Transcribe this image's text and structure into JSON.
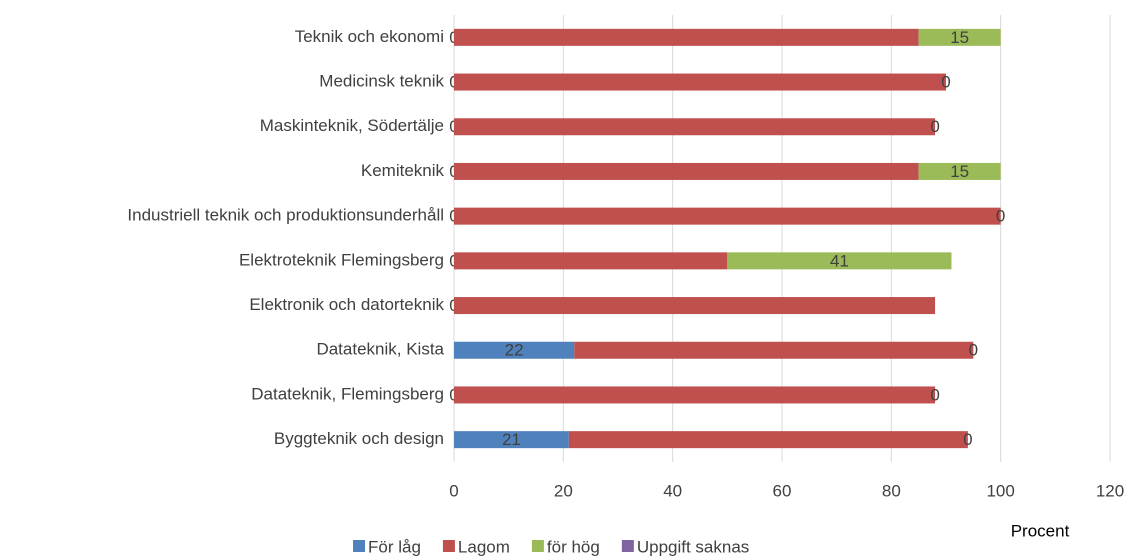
{
  "chart_data": {
    "type": "stacked_barh",
    "categories": [
      "Teknik och ekonomi",
      "Medicinsk teknik",
      "Maskinteknik, Södertälje",
      "Kemiteknik",
      "Industriell teknik och produktionsunderhåll",
      "Elektroteknik Flemingsberg",
      "Elektronik och datorteknik",
      "Datateknik, Kista",
      "Datateknik, Flemingsberg",
      "Byggteknik och design"
    ],
    "series": [
      {
        "name": "För låg",
        "color": "#4f81bd",
        "values": [
          0,
          0,
          0,
          0,
          0,
          0,
          0,
          22,
          0,
          21
        ],
        "labels": true
      },
      {
        "name": "Lagom",
        "color": "#c0504d",
        "values": [
          85,
          90,
          88,
          85,
          100,
          50,
          88,
          73,
          88,
          73
        ],
        "labels": false
      },
      {
        "name": "för hög",
        "color": "#9bbb59",
        "values": [
          15,
          0,
          0,
          15,
          0,
          41,
          null,
          0,
          0,
          0
        ],
        "labels": true
      },
      {
        "name": "Uppgift saknas",
        "color": "#8064a2",
        "values": [
          0,
          0,
          0,
          0,
          0,
          0,
          0,
          0,
          0,
          0
        ],
        "labels": false
      }
    ],
    "xlim": [
      0,
      120
    ],
    "xticks": [
      0,
      20,
      40,
      60,
      80,
      100,
      120
    ],
    "xlabel": "Procent",
    "grid": true,
    "legend": "bottom"
  }
}
